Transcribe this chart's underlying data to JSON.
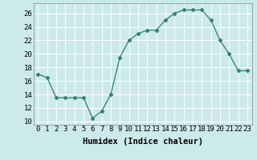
{
  "x": [
    0,
    1,
    2,
    3,
    4,
    5,
    6,
    7,
    8,
    9,
    10,
    11,
    12,
    13,
    14,
    15,
    16,
    17,
    18,
    19,
    20,
    21,
    22,
    23
  ],
  "y": [
    17,
    16.5,
    13.5,
    13.5,
    13.5,
    13.5,
    10.5,
    11.5,
    14,
    19.5,
    22,
    23,
    23.5,
    23.5,
    25,
    26,
    26.5,
    26.5,
    26.5,
    25,
    22,
    20,
    17.5,
    17.5
  ],
  "line_color": "#2e7f6e",
  "marker": "D",
  "marker_size": 2.5,
  "bg_color": "#cceaea",
  "grid_color": "#ffffff",
  "xlabel": "Humidex (Indice chaleur)",
  "ylabel_ticks": [
    10,
    12,
    14,
    16,
    18,
    20,
    22,
    24,
    26
  ],
  "ylim": [
    9.5,
    27.5
  ],
  "xlim": [
    -0.5,
    23.5
  ],
  "xtick_labels": [
    "0",
    "1",
    "2",
    "3",
    "4",
    "5",
    "6",
    "7",
    "8",
    "9",
    "10",
    "11",
    "12",
    "13",
    "14",
    "15",
    "16",
    "17",
    "18",
    "19",
    "20",
    "21",
    "22",
    "23"
  ],
  "xlabel_fontsize": 7.5,
  "tick_fontsize": 6.5
}
